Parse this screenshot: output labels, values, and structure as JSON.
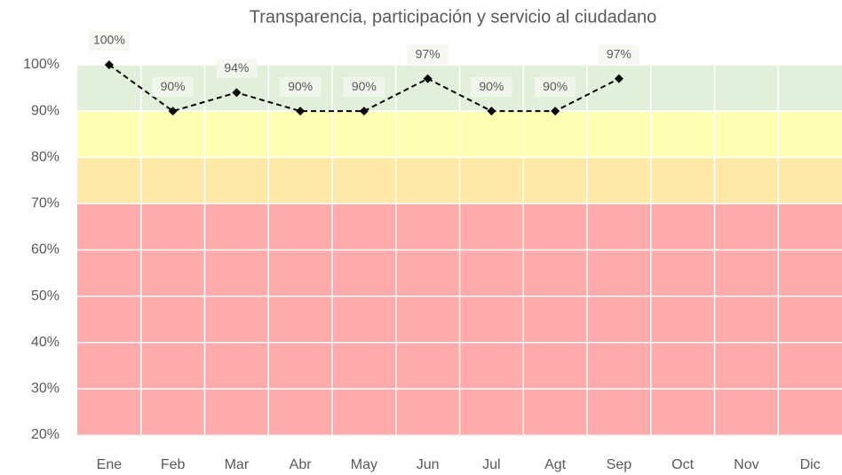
{
  "chart_data": {
    "type": "line",
    "title": "Transparencia, participación y servicio al ciudadano",
    "categories": [
      "Ene",
      "Feb",
      "Mar",
      "Abr",
      "May",
      "Jun",
      "Jul",
      "Agt",
      "Sep",
      "Oct",
      "Nov",
      "Dic"
    ],
    "series": [
      {
        "color": "#000000",
        "values": [
          100,
          90,
          94,
          90,
          90,
          97,
          90,
          90,
          97,
          null,
          null,
          null
        ],
        "value_labels": [
          "100%",
          "90%",
          "94%",
          "90%",
          "90%",
          "97%",
          "90%",
          "90%",
          "97%",
          null,
          null,
          null
        ]
      }
    ],
    "ylim": [
      20,
      100
    ],
    "yticks": [
      {
        "value": 20,
        "label": "20%"
      },
      {
        "value": 30,
        "label": "30%"
      },
      {
        "value": 40,
        "label": "40%"
      },
      {
        "value": 50,
        "label": "50%"
      },
      {
        "value": 60,
        "label": "60%"
      },
      {
        "value": 70,
        "label": "70%"
      },
      {
        "value": 80,
        "label": "80%"
      },
      {
        "value": 90,
        "label": "90%"
      },
      {
        "value": 100,
        "label": "100%"
      }
    ],
    "bands": [
      {
        "from": 90,
        "to": 100,
        "color": "#e2efda"
      },
      {
        "from": 80,
        "to": 90,
        "color": "#ffffb3"
      },
      {
        "from": 70,
        "to": 80,
        "color": "#ffe9a8"
      },
      {
        "from": 20,
        "to": 70,
        "color": "#ffabab"
      }
    ],
    "grid": true
  }
}
